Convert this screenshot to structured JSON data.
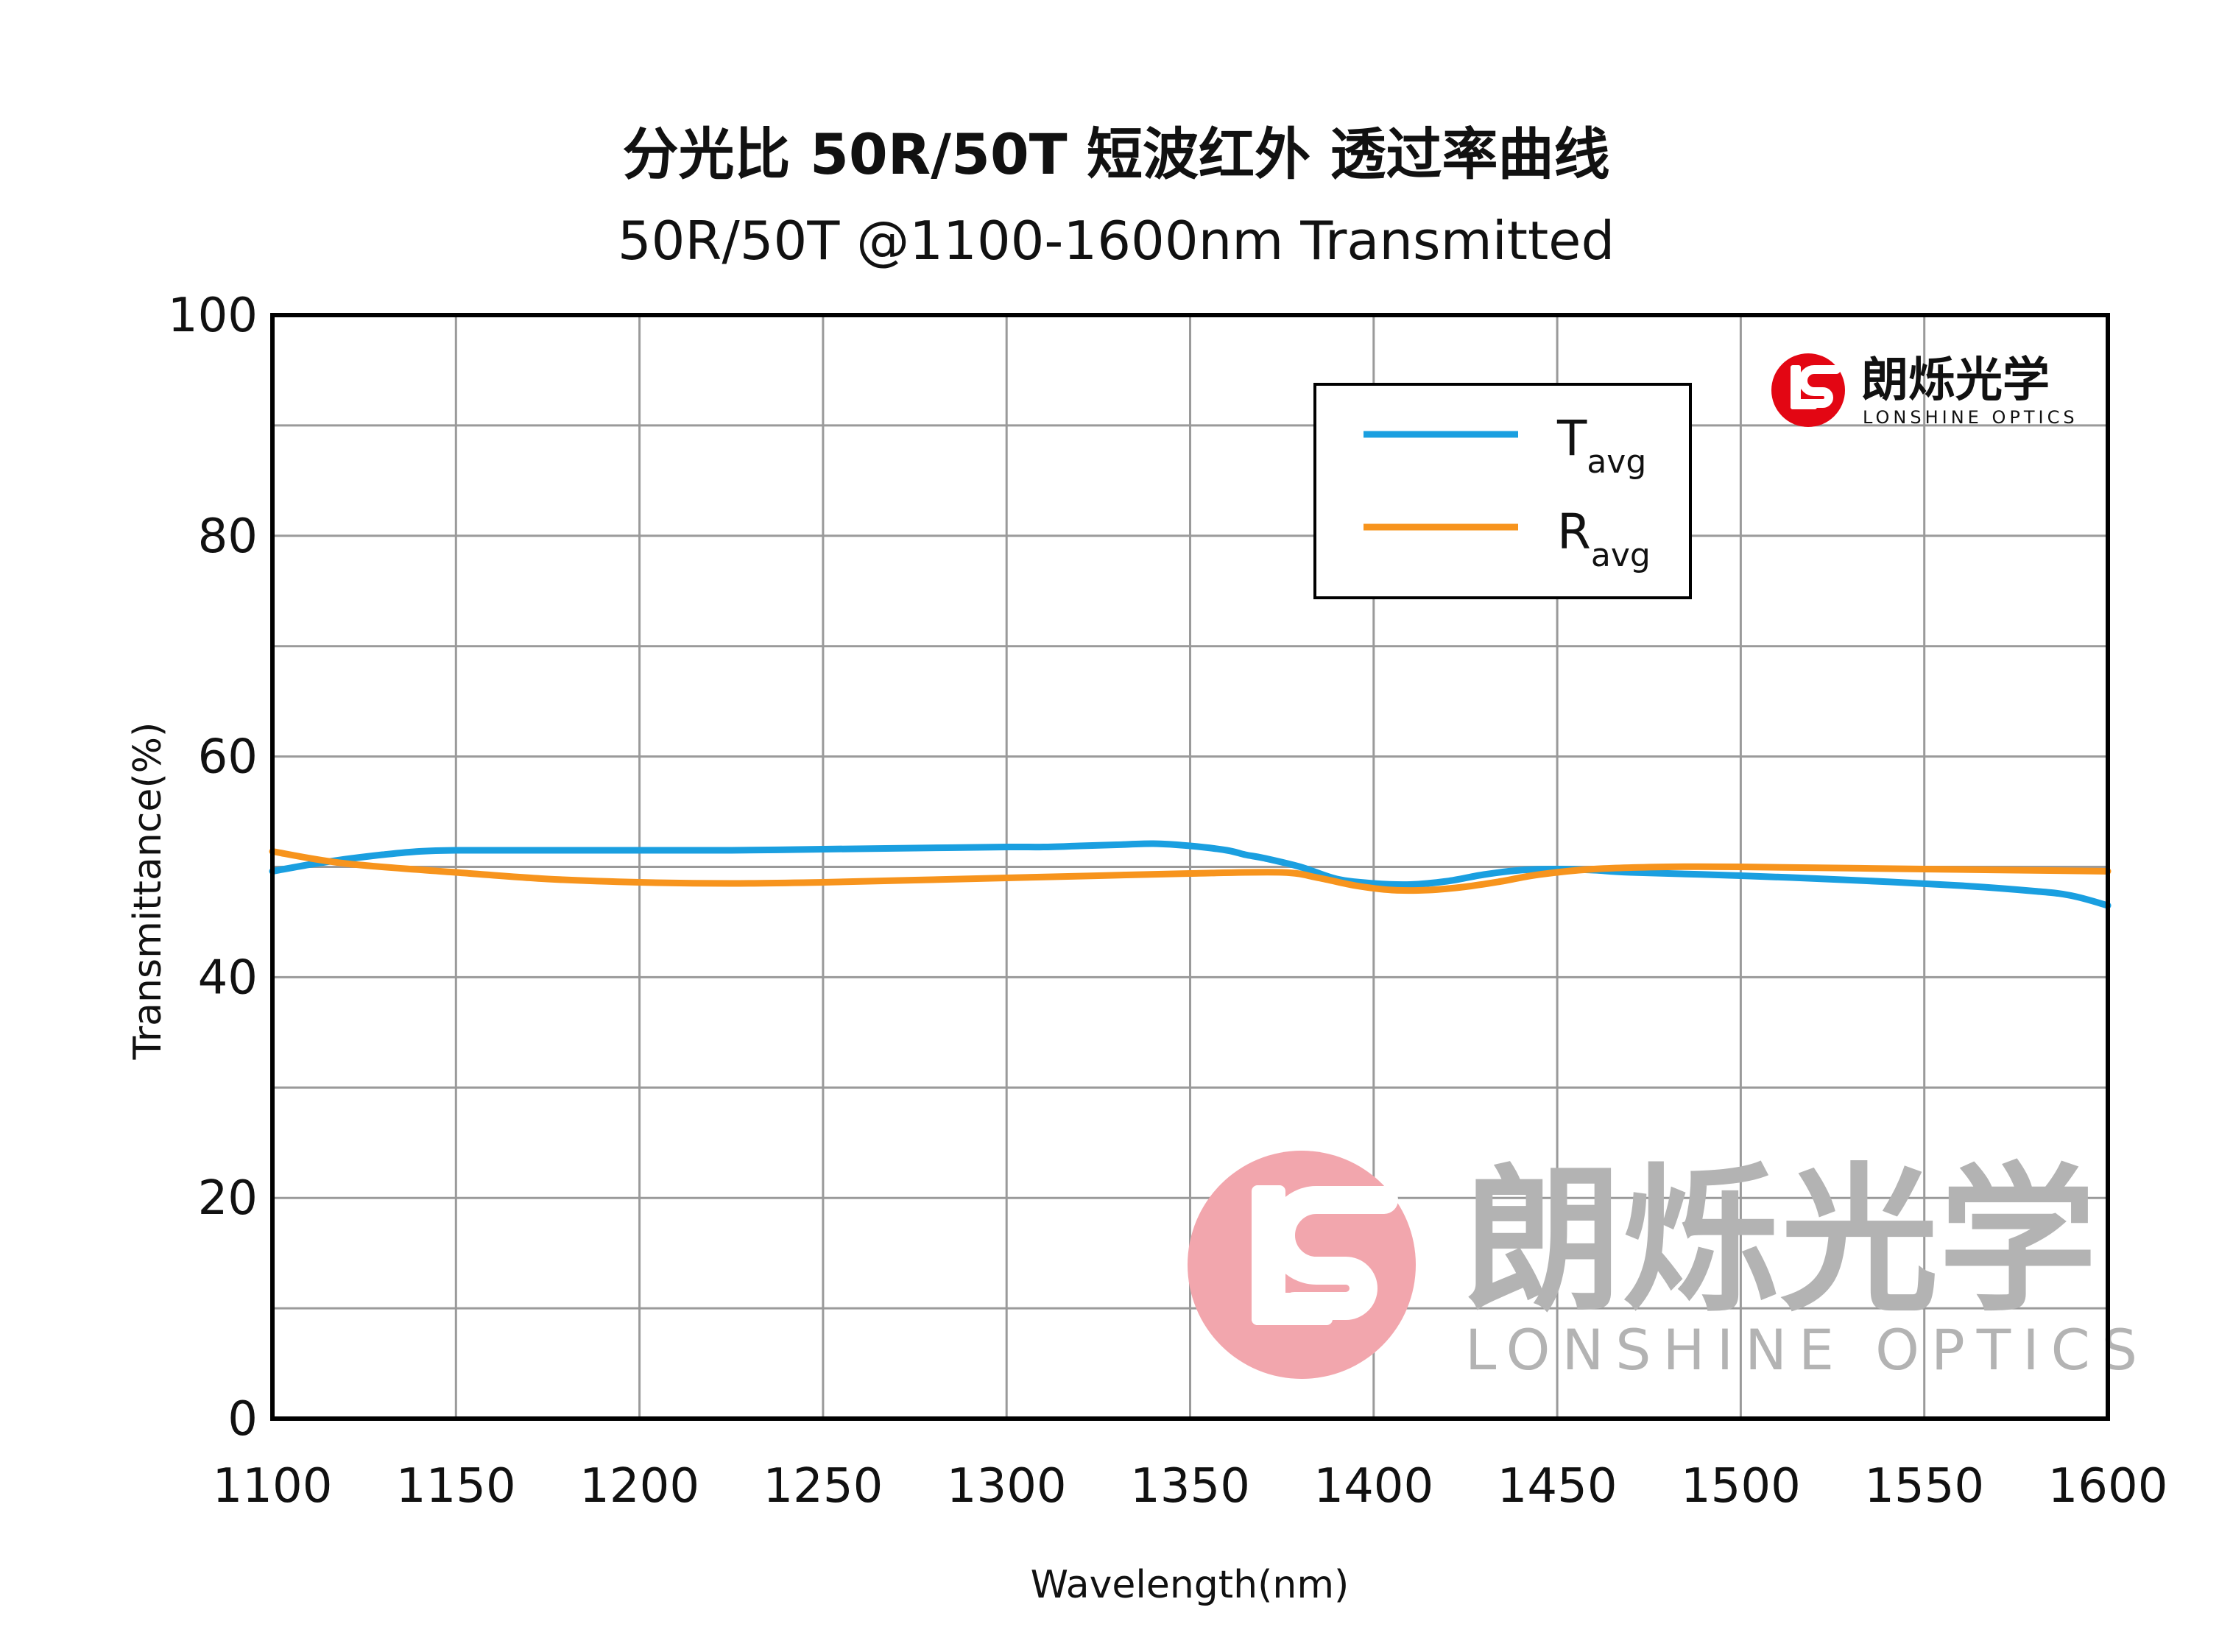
{
  "chart_data": {
    "type": "line",
    "title": "分光比 50R/50T 短波红外 透过率曲线",
    "subtitle": "50R/50T @1100-1600nm  Transmitted",
    "xlabel": "Wavelength(nm)",
    "ylabel": "Transmittance(%)",
    "xlim": [
      1100,
      1600
    ],
    "ylim": [
      0,
      100
    ],
    "x_ticks": [
      1100,
      1150,
      1200,
      1250,
      1300,
      1350,
      1400,
      1450,
      1500,
      1550,
      1600
    ],
    "y_ticks": [
      0,
      20,
      40,
      60,
      80,
      100
    ],
    "grid": true,
    "legend_position": "top-right",
    "series": [
      {
        "name": "T",
        "name_sub": "avg",
        "color": "#1a9fe0",
        "x": [
          1100,
          1110,
          1120,
          1130,
          1140,
          1150,
          1175,
          1200,
          1225,
          1250,
          1275,
          1300,
          1310,
          1320,
          1330,
          1340,
          1350,
          1360,
          1365,
          1370,
          1380,
          1390,
          1400,
          1410,
          1420,
          1430,
          1440,
          1450,
          1460,
          1470,
          1500,
          1530,
          1560,
          1580,
          1590,
          1600
        ],
        "y": [
          49.6,
          50.2,
          50.7,
          51.1,
          51.4,
          51.5,
          51.5,
          51.5,
          51.5,
          51.6,
          51.7,
          51.8,
          51.8,
          51.9,
          52.0,
          52.1,
          51.9,
          51.5,
          51.1,
          50.8,
          50.0,
          48.9,
          48.5,
          48.4,
          48.7,
          49.3,
          49.7,
          49.8,
          49.7,
          49.5,
          49.2,
          48.8,
          48.3,
          47.8,
          47.4,
          46.5
        ]
      },
      {
        "name": "R",
        "name_sub": "avg",
        "color": "#f7941d",
        "x": [
          1100,
          1120,
          1150,
          1175,
          1200,
          1225,
          1250,
          1275,
          1300,
          1325,
          1350,
          1375,
          1385,
          1395,
          1405,
          1415,
          1425,
          1435,
          1445,
          1460,
          1480,
          1500,
          1550,
          1600
        ],
        "y": [
          51.4,
          50.3,
          49.5,
          48.9,
          48.6,
          48.5,
          48.6,
          48.8,
          49.0,
          49.2,
          49.4,
          49.5,
          49.0,
          48.3,
          47.9,
          47.9,
          48.2,
          48.7,
          49.3,
          49.8,
          50.0,
          50.0,
          49.8,
          49.6
        ]
      }
    ]
  },
  "logo": {
    "brand_cn": "朗烁光学",
    "brand_en": "LONSHINE OPTICS",
    "mark_text": "LS",
    "mark_color": "#e30613"
  },
  "watermark": {
    "brand_cn": "朗烁光学",
    "brand_en": "LONSHINE OPTICS",
    "mark_color": "#f2a6ad"
  }
}
